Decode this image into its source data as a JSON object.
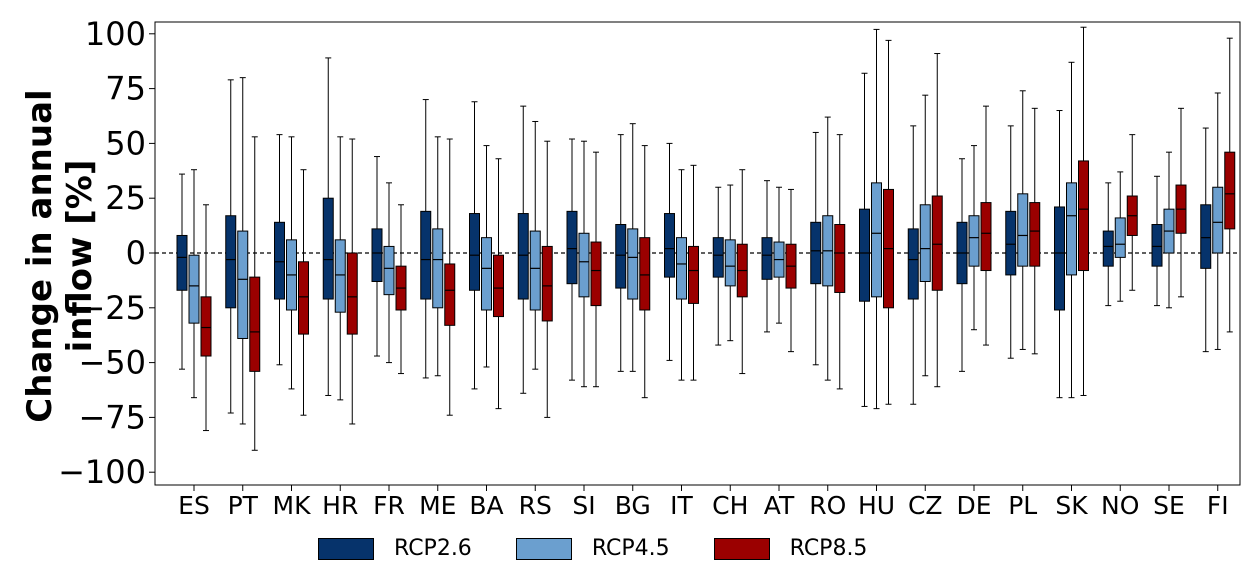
{
  "chart_data": {
    "type": "box",
    "ylabel": "Change in annual inflow [%]",
    "ylim": [
      -105,
      105
    ],
    "yticks": [
      "100",
      "75",
      "50",
      "25",
      "0",
      "−25",
      "−50",
      "−75",
      "−100"
    ],
    "ytick_values": [
      100,
      75,
      50,
      25,
      0,
      -25,
      -50,
      -75,
      -100
    ],
    "reference_line": 0,
    "legend_position": "bottom",
    "categories": [
      "ES",
      "PT",
      "MK",
      "HR",
      "FR",
      "ME",
      "BA",
      "RS",
      "SI",
      "BG",
      "IT",
      "CH",
      "AT",
      "RO",
      "HU",
      "CZ",
      "DE",
      "PL",
      "SK",
      "NO",
      "SE",
      "FI"
    ],
    "series": [
      {
        "name": "RCP2.6",
        "color": "#06336b",
        "boxes": [
          {
            "whislo": -53,
            "q1": -17,
            "med": -2,
            "q3": 8,
            "whishi": 36
          },
          {
            "whislo": -73,
            "q1": -25,
            "med": -3,
            "q3": 17,
            "whishi": 79
          },
          {
            "whislo": -51,
            "q1": -21,
            "med": -4,
            "q3": 14,
            "whishi": 54
          },
          {
            "whislo": -65,
            "q1": -21,
            "med": -3,
            "q3": 25,
            "whishi": 89
          },
          {
            "whislo": -47,
            "q1": -13,
            "med": 0,
            "q3": 11,
            "whishi": 44
          },
          {
            "whislo": -57,
            "q1": -21,
            "med": -3,
            "q3": 19,
            "whishi": 70
          },
          {
            "whislo": -62,
            "q1": -17,
            "med": -1,
            "q3": 18,
            "whishi": 69
          },
          {
            "whislo": -64,
            "q1": -21,
            "med": -1,
            "q3": 18,
            "whishi": 67
          },
          {
            "whislo": -58,
            "q1": -14,
            "med": 2,
            "q3": 19,
            "whishi": 52
          },
          {
            "whislo": -54,
            "q1": -16,
            "med": -1,
            "q3": 13,
            "whishi": 54
          },
          {
            "whislo": -49,
            "q1": -11,
            "med": 2,
            "q3": 18,
            "whishi": 50
          },
          {
            "whislo": -42,
            "q1": -11,
            "med": -1,
            "q3": 7,
            "whishi": 30
          },
          {
            "whislo": -36,
            "q1": -12,
            "med": -1,
            "q3": 7,
            "whishi": 33
          },
          {
            "whislo": -51,
            "q1": -14,
            "med": 1,
            "q3": 14,
            "whishi": 55
          },
          {
            "whislo": -70,
            "q1": -22,
            "med": 0,
            "q3": 20,
            "whishi": 82
          },
          {
            "whislo": -69,
            "q1": -21,
            "med": -3,
            "q3": 11,
            "whishi": 58
          },
          {
            "whislo": -54,
            "q1": -14,
            "med": 0,
            "q3": 14,
            "whishi": 43
          },
          {
            "whislo": -48,
            "q1": -10,
            "med": 4,
            "q3": 19,
            "whishi": 58
          },
          {
            "whislo": -66,
            "q1": -26,
            "med": 0,
            "q3": 21,
            "whishi": 65
          },
          {
            "whislo": -24,
            "q1": -6,
            "med": 3,
            "q3": 10,
            "whishi": 32
          },
          {
            "whislo": -24,
            "q1": -6,
            "med": 3,
            "q3": 13,
            "whishi": 35
          },
          {
            "whislo": -45,
            "q1": -7,
            "med": 7,
            "q3": 22,
            "whishi": 57
          }
        ]
      },
      {
        "name": "RCP4.5",
        "color": "#6b9fcf",
        "boxes": [
          {
            "whislo": -66,
            "q1": -32,
            "med": -15,
            "q3": -1,
            "whishi": 38
          },
          {
            "whislo": -78,
            "q1": -39,
            "med": -12,
            "q3": 10,
            "whishi": 80
          },
          {
            "whislo": -62,
            "q1": -26,
            "med": -10,
            "q3": 6,
            "whishi": 53
          },
          {
            "whislo": -67,
            "q1": -27,
            "med": -10,
            "q3": 6,
            "whishi": 53
          },
          {
            "whislo": -50,
            "q1": -19,
            "med": -7,
            "q3": 3,
            "whishi": 32
          },
          {
            "whislo": -56,
            "q1": -25,
            "med": -3,
            "q3": 11,
            "whishi": 53
          },
          {
            "whislo": -52,
            "q1": -26,
            "med": -7,
            "q3": 7,
            "whishi": 49
          },
          {
            "whislo": -53,
            "q1": -26,
            "med": -7,
            "q3": 10,
            "whishi": 60
          },
          {
            "whislo": -61,
            "q1": -20,
            "med": -4,
            "q3": 9,
            "whishi": 51
          },
          {
            "whislo": -54,
            "q1": -21,
            "med": -2,
            "q3": 11,
            "whishi": 59
          },
          {
            "whislo": -58,
            "q1": -21,
            "med": -5,
            "q3": 7,
            "whishi": 38
          },
          {
            "whislo": -40,
            "q1": -15,
            "med": -6,
            "q3": 6,
            "whishi": 31
          },
          {
            "whislo": -32,
            "q1": -11,
            "med": -3,
            "q3": 5,
            "whishi": 30
          },
          {
            "whislo": -58,
            "q1": -15,
            "med": 1,
            "q3": 17,
            "whishi": 62
          },
          {
            "whislo": -71,
            "q1": -20,
            "med": 9,
            "q3": 32,
            "whishi": 102
          },
          {
            "whislo": -56,
            "q1": -13,
            "med": 2,
            "q3": 22,
            "whishi": 72
          },
          {
            "whislo": -35,
            "q1": -6,
            "med": 7,
            "q3": 17,
            "whishi": 49
          },
          {
            "whislo": -44,
            "q1": -6,
            "med": 8,
            "q3": 27,
            "whishi": 74
          },
          {
            "whislo": -66,
            "q1": -10,
            "med": 17,
            "q3": 32,
            "whishi": 87
          },
          {
            "whislo": -22,
            "q1": -2,
            "med": 4,
            "q3": 16,
            "whishi": 37
          },
          {
            "whislo": -25,
            "q1": 0,
            "med": 10,
            "q3": 20,
            "whishi": 46
          },
          {
            "whislo": -44,
            "q1": 0,
            "med": 14,
            "q3": 30,
            "whishi": 73
          }
        ]
      },
      {
        "name": "RCP8.5",
        "color": "#9b0000",
        "boxes": [
          {
            "whislo": -81,
            "q1": -47,
            "med": -34,
            "q3": -20,
            "whishi": 22
          },
          {
            "whislo": -90,
            "q1": -54,
            "med": -36,
            "q3": -11,
            "whishi": 53
          },
          {
            "whislo": -74,
            "q1": -37,
            "med": -20,
            "q3": -4,
            "whishi": 38
          },
          {
            "whislo": -78,
            "q1": -37,
            "med": -20,
            "q3": 0,
            "whishi": 52
          },
          {
            "whislo": -55,
            "q1": -26,
            "med": -16,
            "q3": -6,
            "whishi": 22
          },
          {
            "whislo": -74,
            "q1": -33,
            "med": -17,
            "q3": -5,
            "whishi": 52
          },
          {
            "whislo": -71,
            "q1": -29,
            "med": -16,
            "q3": -1,
            "whishi": 43
          },
          {
            "whislo": -75,
            "q1": -31,
            "med": -15,
            "q3": 3,
            "whishi": 51
          },
          {
            "whislo": -61,
            "q1": -24,
            "med": -8,
            "q3": 5,
            "whishi": 46
          },
          {
            "whislo": -66,
            "q1": -26,
            "med": -10,
            "q3": 7,
            "whishi": 49
          },
          {
            "whislo": -58,
            "q1": -23,
            "med": -8,
            "q3": 3,
            "whishi": 40
          },
          {
            "whislo": -55,
            "q1": -20,
            "med": -8,
            "q3": 4,
            "whishi": 38
          },
          {
            "whislo": -45,
            "q1": -16,
            "med": -6,
            "q3": 4,
            "whishi": 29
          },
          {
            "whislo": -62,
            "q1": -18,
            "med": 0,
            "q3": 13,
            "whishi": 54
          },
          {
            "whislo": -69,
            "q1": -25,
            "med": 2,
            "q3": 29,
            "whishi": 97
          },
          {
            "whislo": -61,
            "q1": -17,
            "med": 4,
            "q3": 26,
            "whishi": 91
          },
          {
            "whislo": -42,
            "q1": -8,
            "med": 9,
            "q3": 23,
            "whishi": 67
          },
          {
            "whislo": -46,
            "q1": -6,
            "med": 10,
            "q3": 23,
            "whishi": 66
          },
          {
            "whislo": -65,
            "q1": -8,
            "med": 20,
            "q3": 42,
            "whishi": 103
          },
          {
            "whislo": -17,
            "q1": 8,
            "med": 17,
            "q3": 26,
            "whishi": 54
          },
          {
            "whislo": -20,
            "q1": 9,
            "med": 20,
            "q3": 31,
            "whishi": 66
          },
          {
            "whislo": -36,
            "q1": 11,
            "med": 27,
            "q3": 46,
            "whishi": 98
          }
        ]
      }
    ]
  }
}
